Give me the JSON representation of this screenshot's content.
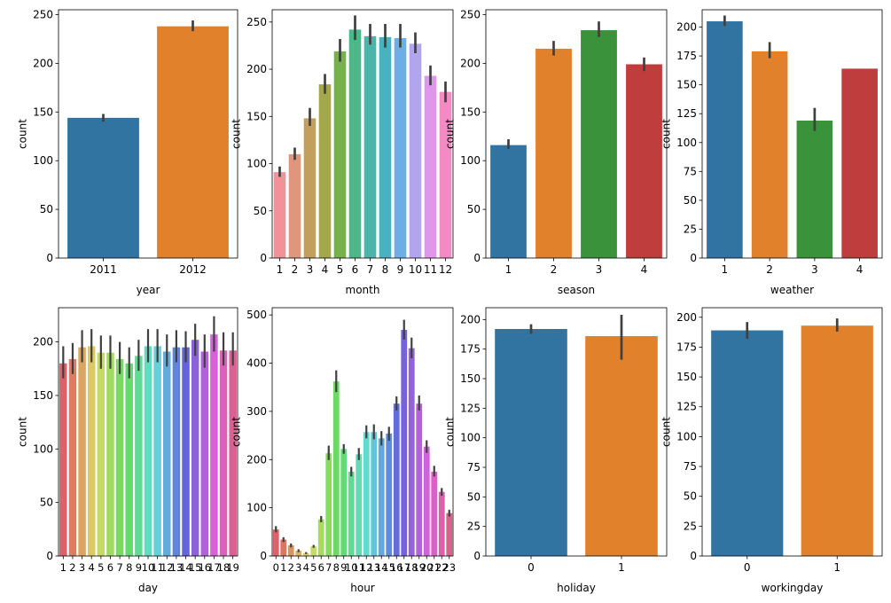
{
  "figure": {
    "background": "#ffffff"
  },
  "palettes": {
    "tab": [
      "#3274a1",
      "#e1812c",
      "#3a923a",
      "#c03d3e"
    ],
    "husl12": [
      "#f1919a",
      "#e0967b",
      "#c29f5d",
      "#a2a84b",
      "#77b14c",
      "#4db789",
      "#4ab5a8",
      "#4ab1c1",
      "#6eaee7",
      "#b1a6ee",
      "#de97ea",
      "#f38ac3"
    ],
    "errorbar": "#404040"
  },
  "chart_data": [
    {
      "type": "bar",
      "xlabel": "year",
      "ylabel": "count",
      "categories": [
        "2011",
        "2012"
      ],
      "values": [
        144,
        238
      ],
      "errors": [
        [
          140,
          148
        ],
        [
          233,
          244
        ]
      ],
      "ylim": [
        0,
        255
      ],
      "yticks": [
        0,
        50,
        100,
        150,
        200,
        250
      ],
      "palette": "tab"
    },
    {
      "type": "bar",
      "xlabel": "month",
      "ylabel": "count",
      "categories": [
        "1",
        "2",
        "3",
        "4",
        "5",
        "6",
        "7",
        "8",
        "9",
        "10",
        "11",
        "12"
      ],
      "values": [
        91,
        110,
        148,
        184,
        219,
        242,
        235,
        234,
        233,
        227,
        193,
        176
      ],
      "errors": [
        [
          86,
          97
        ],
        [
          104,
          117
        ],
        [
          140,
          159
        ],
        [
          174,
          195
        ],
        [
          208,
          232
        ],
        [
          231,
          257
        ],
        [
          226,
          248
        ],
        [
          223,
          248
        ],
        [
          223,
          248
        ],
        [
          217,
          239
        ],
        [
          183,
          204
        ],
        [
          165,
          187
        ]
      ],
      "ylim": [
        0,
        263
      ],
      "yticks": [
        0,
        50,
        100,
        150,
        200,
        250
      ],
      "palette": "husl12"
    },
    {
      "type": "bar",
      "xlabel": "season",
      "ylabel": "count",
      "categories": [
        "1",
        "2",
        "3",
        "4"
      ],
      "values": [
        116,
        215,
        234,
        199
      ],
      "errors": [
        [
          112,
          122
        ],
        [
          208,
          223
        ],
        [
          227,
          243
        ],
        [
          192,
          206
        ]
      ],
      "ylim": [
        0,
        255
      ],
      "yticks": [
        0,
        50,
        100,
        150,
        200,
        250
      ],
      "palette": "tab"
    },
    {
      "type": "bar",
      "xlabel": "weather",
      "ylabel": "count",
      "categories": [
        "1",
        "2",
        "3",
        "4"
      ],
      "values": [
        205,
        179,
        119,
        164
      ],
      "errors": [
        [
          201,
          210
        ],
        [
          173,
          187
        ],
        [
          110,
          130
        ],
        null
      ],
      "ylim": [
        0,
        215
      ],
      "yticks": [
        0,
        25,
        50,
        75,
        100,
        125,
        150,
        175,
        200
      ],
      "palette": "tab"
    },
    {
      "type": "bar",
      "xlabel": "day",
      "ylabel": "count",
      "categories": [
        "1",
        "2",
        "3",
        "4",
        "5",
        "6",
        "7",
        "8",
        "9",
        "10",
        "11",
        "12",
        "13",
        "14",
        "15",
        "16",
        "17",
        "18",
        "19"
      ],
      "values": [
        180,
        184,
        195,
        196,
        190,
        190,
        184,
        180,
        187,
        196,
        196,
        191,
        195,
        195,
        202,
        191,
        207,
        192,
        192
      ],
      "errors": [
        [
          166,
          196
        ],
        [
          170,
          199
        ],
        [
          181,
          211
        ],
        [
          181,
          212
        ],
        [
          175,
          206
        ],
        [
          175,
          206
        ],
        [
          170,
          200
        ],
        [
          166,
          195
        ],
        [
          173,
          202
        ],
        [
          181,
          212
        ],
        [
          181,
          212
        ],
        [
          177,
          207
        ],
        [
          181,
          211
        ],
        [
          181,
          210
        ],
        [
          187,
          217
        ],
        [
          176,
          207
        ],
        [
          191,
          224
        ],
        [
          178,
          209
        ],
        [
          178,
          209
        ]
      ],
      "ylim": [
        0,
        232
      ],
      "yticks": [
        0,
        50,
        100,
        150,
        200
      ],
      "palette": "husl19"
    },
    {
      "type": "bar",
      "xlabel": "hour",
      "ylabel": "count",
      "categories": [
        "0",
        "1",
        "2",
        "3",
        "4",
        "5",
        "6",
        "7",
        "8",
        "9",
        "10",
        "11",
        "12",
        "13",
        "14",
        "15",
        "16",
        "17",
        "18",
        "19",
        "20",
        "21",
        "22",
        "23"
      ],
      "values": [
        55,
        34,
        22,
        11,
        6,
        20,
        76,
        213,
        362,
        222,
        175,
        211,
        257,
        257,
        244,
        254,
        316,
        469,
        431,
        316,
        227,
        175,
        133,
        89
      ],
      "errors": [
        [
          49,
          62
        ],
        [
          29,
          39
        ],
        [
          18,
          26
        ],
        [
          8,
          14
        ],
        [
          4,
          8
        ],
        [
          17,
          23
        ],
        [
          70,
          83
        ],
        [
          199,
          229
        ],
        [
          340,
          385
        ],
        [
          212,
          232
        ],
        [
          165,
          185
        ],
        [
          199,
          224
        ],
        [
          244,
          271
        ],
        [
          242,
          273
        ],
        [
          229,
          259
        ],
        [
          239,
          268
        ],
        [
          302,
          331
        ],
        [
          449,
          490
        ],
        [
          410,
          453
        ],
        [
          302,
          333
        ],
        [
          214,
          240
        ],
        [
          165,
          187
        ],
        [
          125,
          141
        ],
        [
          82,
          96
        ]
      ],
      "ylim": [
        0,
        515
      ],
      "yticks": [
        0,
        100,
        200,
        300,
        400,
        500
      ],
      "palette": "husl24"
    },
    {
      "type": "bar",
      "xlabel": "holiday",
      "ylabel": "count",
      "categories": [
        "0",
        "1"
      ],
      "values": [
        192,
        186
      ],
      "errors": [
        [
          188,
          196
        ],
        [
          166,
          204
        ]
      ],
      "ylim": [
        0,
        210
      ],
      "yticks": [
        0,
        25,
        50,
        75,
        100,
        125,
        150,
        175,
        200
      ],
      "palette": "tab"
    },
    {
      "type": "bar",
      "xlabel": "workingday",
      "ylabel": "count",
      "categories": [
        "0",
        "1"
      ],
      "values": [
        189,
        193
      ],
      "errors": [
        [
          182,
          196
        ],
        [
          188,
          199
        ]
      ],
      "ylim": [
        0,
        208
      ],
      "yticks": [
        0,
        25,
        50,
        75,
        100,
        125,
        150,
        175,
        200
      ],
      "palette": "tab"
    }
  ]
}
